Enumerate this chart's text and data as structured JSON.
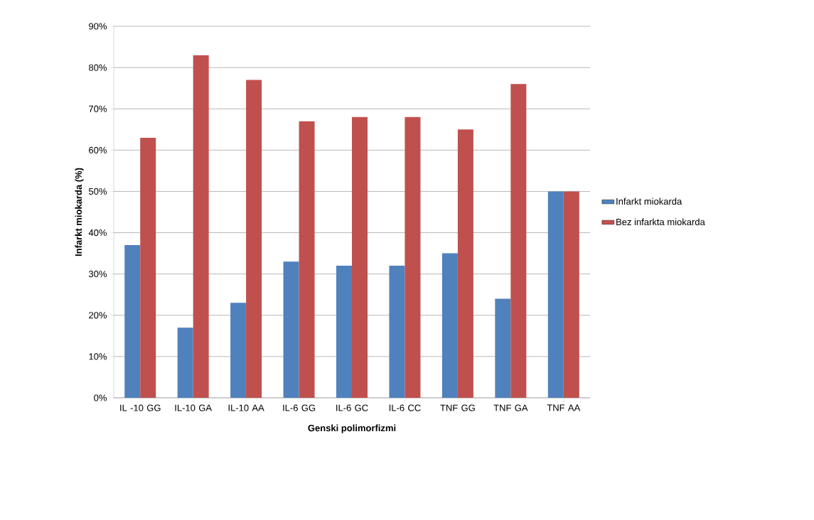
{
  "chart_data": {
    "type": "bar",
    "xlabel": "Genski polimorfizmi",
    "ylabel": "Infarkt miokarda (%)",
    "categories": [
      "IL -10 GG",
      "IL-10 GA",
      "IL-10 AA",
      "IL-6 GG",
      "IL-6 GC",
      "IL-6 CC",
      "TNF GG",
      "TNF GA",
      "TNF AA"
    ],
    "series": [
      {
        "name": "Infarkt miokarda",
        "color": "#4f81bd",
        "values": [
          37,
          17,
          23,
          33,
          32,
          32,
          35,
          24,
          50
        ]
      },
      {
        "name": "Bez infarkta miokarda",
        "color": "#c0504d",
        "values": [
          63,
          83,
          77,
          67,
          68,
          68,
          65,
          76,
          50
        ]
      }
    ],
    "ylim": [
      0,
      90
    ],
    "yticks": [
      {
        "value": 0,
        "label": "0%"
      },
      {
        "value": 10,
        "label": "10%"
      },
      {
        "value": 20,
        "label": "20%"
      },
      {
        "value": 30,
        "label": "30%"
      },
      {
        "value": 40,
        "label": "40%"
      },
      {
        "value": 50,
        "label": "50%"
      },
      {
        "value": 60,
        "label": "60%"
      },
      {
        "value": 70,
        "label": "70%"
      },
      {
        "value": 80,
        "label": "80%"
      },
      {
        "value": 90,
        "label": "90%"
      }
    ],
    "grid": "y",
    "legend": "right"
  }
}
